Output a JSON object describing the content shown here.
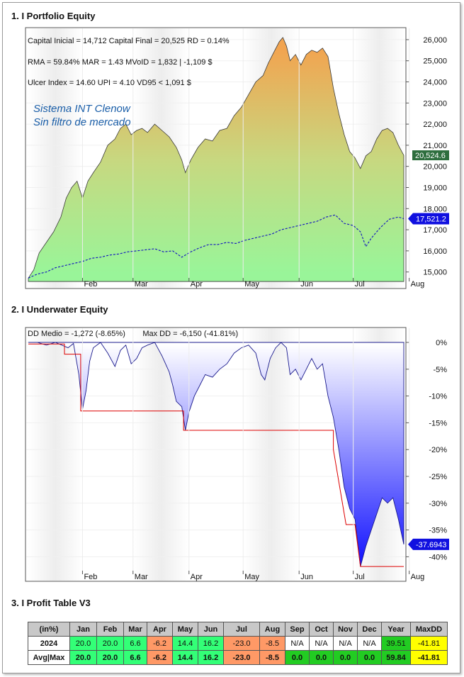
{
  "sections": {
    "equity_title": "1. I Portfolio Equity",
    "underwater_title": "2. I Underwater Equity",
    "profit_title": "3. I Profit Table V3"
  },
  "equity_stats": {
    "line1": "Capital Inicial = 14,712  Capital Final = 20,525   RD = 0.14%",
    "line2": "RMA = 59.84%   MAR = 1.43   MVoID = 1,832 | -1,109 $",
    "line3": "Ulcer Index = 14.60   UPI = 4.10   VD95 < 1,091 $"
  },
  "equity_annotation": {
    "line1": "Sistema INT Clenow",
    "line2": "Sin filtro de mercado"
  },
  "underwater_stats": {
    "text": "DD Medio = -1,272 (-8.65%)        Max DD = -6,150 (-41.81%)"
  },
  "chart_data": [
    {
      "type": "area",
      "name": "portfolio-equity",
      "y_ticks": [
        "26,000",
        "25,000",
        "24,000",
        "23,000",
        "22,000",
        "21,000",
        "20,000",
        "19,000",
        "18,000",
        "17,000",
        "16,000",
        "15,000"
      ],
      "x_ticks": [
        "Feb",
        "Mar",
        "Apr",
        "May",
        "Jun",
        "Jul",
        "Aug"
      ],
      "ylim": [
        14250,
        26400
      ],
      "last_value_label": "20,524.6",
      "benchmark_last_label": "17,521.2",
      "series_equity": [
        {
          "t": 0,
          "v": 14712
        },
        {
          "t": 3,
          "v": 15100
        },
        {
          "t": 6,
          "v": 15900
        },
        {
          "t": 10,
          "v": 16400
        },
        {
          "t": 14,
          "v": 16900
        },
        {
          "t": 18,
          "v": 17600
        },
        {
          "t": 21,
          "v": 18500
        },
        {
          "t": 24,
          "v": 19000
        },
        {
          "t": 27,
          "v": 19300
        },
        {
          "t": 30,
          "v": 18500
        },
        {
          "t": 33,
          "v": 19300
        },
        {
          "t": 36,
          "v": 19700
        },
        {
          "t": 40,
          "v": 20200
        },
        {
          "t": 44,
          "v": 21000
        },
        {
          "t": 48,
          "v": 21300
        },
        {
          "t": 51,
          "v": 21800
        },
        {
          "t": 54,
          "v": 22000
        },
        {
          "t": 57,
          "v": 21500
        },
        {
          "t": 60,
          "v": 21700
        },
        {
          "t": 63,
          "v": 21800
        },
        {
          "t": 66,
          "v": 21600
        },
        {
          "t": 70,
          "v": 22000
        },
        {
          "t": 74,
          "v": 21700
        },
        {
          "t": 78,
          "v": 21400
        },
        {
          "t": 82,
          "v": 20900
        },
        {
          "t": 85,
          "v": 20300
        },
        {
          "t": 87,
          "v": 19700
        },
        {
          "t": 90,
          "v": 20300
        },
        {
          "t": 94,
          "v": 20900
        },
        {
          "t": 98,
          "v": 21300
        },
        {
          "t": 102,
          "v": 21200
        },
        {
          "t": 106,
          "v": 21700
        },
        {
          "t": 110,
          "v": 21800
        },
        {
          "t": 114,
          "v": 22400
        },
        {
          "t": 118,
          "v": 22800
        },
        {
          "t": 122,
          "v": 23400
        },
        {
          "t": 126,
          "v": 24000
        },
        {
          "t": 130,
          "v": 24300
        },
        {
          "t": 133,
          "v": 24900
        },
        {
          "t": 136,
          "v": 25400
        },
        {
          "t": 139,
          "v": 25900
        },
        {
          "t": 141,
          "v": 26100
        },
        {
          "t": 143,
          "v": 25700
        },
        {
          "t": 145,
          "v": 25000
        },
        {
          "t": 148,
          "v": 25300
        },
        {
          "t": 151,
          "v": 24800
        },
        {
          "t": 154,
          "v": 25300
        },
        {
          "t": 157,
          "v": 25500
        },
        {
          "t": 160,
          "v": 25400
        },
        {
          "t": 163,
          "v": 25600
        },
        {
          "t": 166,
          "v": 25200
        },
        {
          "t": 169,
          "v": 23700
        },
        {
          "t": 172,
          "v": 22500
        },
        {
          "t": 175,
          "v": 21500
        },
        {
          "t": 178,
          "v": 20700
        },
        {
          "t": 181,
          "v": 20400
        },
        {
          "t": 184,
          "v": 19900
        },
        {
          "t": 187,
          "v": 20500
        },
        {
          "t": 190,
          "v": 20700
        },
        {
          "t": 193,
          "v": 21300
        },
        {
          "t": 196,
          "v": 21700
        },
        {
          "t": 199,
          "v": 21800
        },
        {
          "t": 202,
          "v": 21600
        },
        {
          "t": 205,
          "v": 21000
        },
        {
          "t": 208,
          "v": 20524.6
        }
      ],
      "series_benchmark": [
        {
          "t": 0,
          "v": 14712
        },
        {
          "t": 5,
          "v": 14900
        },
        {
          "t": 10,
          "v": 15000
        },
        {
          "t": 15,
          "v": 15200
        },
        {
          "t": 20,
          "v": 15300
        },
        {
          "t": 25,
          "v": 15400
        },
        {
          "t": 30,
          "v": 15500
        },
        {
          "t": 35,
          "v": 15650
        },
        {
          "t": 40,
          "v": 15700
        },
        {
          "t": 45,
          "v": 15800
        },
        {
          "t": 50,
          "v": 15850
        },
        {
          "t": 55,
          "v": 15950
        },
        {
          "t": 60,
          "v": 16000
        },
        {
          "t": 65,
          "v": 16050
        },
        {
          "t": 70,
          "v": 16100
        },
        {
          "t": 75,
          "v": 15950
        },
        {
          "t": 80,
          "v": 16000
        },
        {
          "t": 85,
          "v": 15700
        },
        {
          "t": 90,
          "v": 15950
        },
        {
          "t": 95,
          "v": 16150
        },
        {
          "t": 100,
          "v": 16300
        },
        {
          "t": 105,
          "v": 16300
        },
        {
          "t": 110,
          "v": 16400
        },
        {
          "t": 115,
          "v": 16350
        },
        {
          "t": 120,
          "v": 16500
        },
        {
          "t": 125,
          "v": 16600
        },
        {
          "t": 130,
          "v": 16700
        },
        {
          "t": 135,
          "v": 16800
        },
        {
          "t": 140,
          "v": 17000
        },
        {
          "t": 145,
          "v": 17100
        },
        {
          "t": 150,
          "v": 17200
        },
        {
          "t": 155,
          "v": 17300
        },
        {
          "t": 160,
          "v": 17400
        },
        {
          "t": 165,
          "v": 17600
        },
        {
          "t": 170,
          "v": 17700
        },
        {
          "t": 175,
          "v": 17300
        },
        {
          "t": 180,
          "v": 17200
        },
        {
          "t": 184,
          "v": 16900
        },
        {
          "t": 187,
          "v": 16200
        },
        {
          "t": 190,
          "v": 16600
        },
        {
          "t": 195,
          "v": 17100
        },
        {
          "t": 200,
          "v": 17500
        },
        {
          "t": 205,
          "v": 17600
        },
        {
          "t": 208,
          "v": 17521.2
        }
      ]
    },
    {
      "type": "area",
      "name": "underwater-equity",
      "y_ticks": [
        "0%",
        "-5%",
        "-10%",
        "-15%",
        "-20%",
        "-25%",
        "-30%",
        "-35%",
        "-40%"
      ],
      "x_ticks": [
        "Feb",
        "Mar",
        "Apr",
        "May",
        "Jun",
        "Jul",
        "Aug"
      ],
      "ylim": [
        -43,
        1.5
      ],
      "last_value_label": "-37.6943",
      "series_drawdown": [
        {
          "t": 0,
          "v": 0
        },
        {
          "t": 5,
          "v": 0
        },
        {
          "t": 10,
          "v": -0.5
        },
        {
          "t": 15,
          "v": 0
        },
        {
          "t": 22,
          "v": -1.0
        },
        {
          "t": 25,
          "v": -0.2
        },
        {
          "t": 28,
          "v": -6
        },
        {
          "t": 30,
          "v": -12.5
        },
        {
          "t": 32,
          "v": -9
        },
        {
          "t": 34,
          "v": -3.5
        },
        {
          "t": 36,
          "v": -1
        },
        {
          "t": 40,
          "v": 0
        },
        {
          "t": 44,
          "v": -2
        },
        {
          "t": 48,
          "v": -4.5
        },
        {
          "t": 51,
          "v": -1.5
        },
        {
          "t": 54,
          "v": -0.5
        },
        {
          "t": 57,
          "v": -4
        },
        {
          "t": 60,
          "v": -3
        },
        {
          "t": 63,
          "v": -1
        },
        {
          "t": 66,
          "v": -0.5
        },
        {
          "t": 70,
          "v": 0
        },
        {
          "t": 74,
          "v": -2.5
        },
        {
          "t": 78,
          "v": -5.5
        },
        {
          "t": 80,
          "v": -8
        },
        {
          "t": 82,
          "v": -11
        },
        {
          "t": 85,
          "v": -12
        },
        {
          "t": 87,
          "v": -16.4
        },
        {
          "t": 89,
          "v": -13
        },
        {
          "t": 92,
          "v": -10
        },
        {
          "t": 95,
          "v": -8
        },
        {
          "t": 98,
          "v": -6
        },
        {
          "t": 102,
          "v": -6.5
        },
        {
          "t": 106,
          "v": -5
        },
        {
          "t": 110,
          "v": -4
        },
        {
          "t": 114,
          "v": -2
        },
        {
          "t": 118,
          "v": -1
        },
        {
          "t": 122,
          "v": -0.5
        },
        {
          "t": 126,
          "v": -2
        },
        {
          "t": 129,
          "v": -6
        },
        {
          "t": 131,
          "v": -7
        },
        {
          "t": 134,
          "v": -3
        },
        {
          "t": 137,
          "v": -1
        },
        {
          "t": 140,
          "v": 0
        },
        {
          "t": 143,
          "v": -1
        },
        {
          "t": 145,
          "v": -6
        },
        {
          "t": 148,
          "v": -5
        },
        {
          "t": 151,
          "v": -7
        },
        {
          "t": 154,
          "v": -5
        },
        {
          "t": 157,
          "v": -3
        },
        {
          "t": 160,
          "v": -5
        },
        {
          "t": 163,
          "v": -4
        },
        {
          "t": 166,
          "v": -10
        },
        {
          "t": 169,
          "v": -14
        },
        {
          "t": 172,
          "v": -20
        },
        {
          "t": 175,
          "v": -27
        },
        {
          "t": 178,
          "v": -31
        },
        {
          "t": 181,
          "v": -33
        },
        {
          "t": 184,
          "v": -41.81
        },
        {
          "t": 187,
          "v": -38
        },
        {
          "t": 190,
          "v": -35
        },
        {
          "t": 193,
          "v": -32
        },
        {
          "t": 196,
          "v": -29
        },
        {
          "t": 199,
          "v": -30
        },
        {
          "t": 202,
          "v": -29
        },
        {
          "t": 205,
          "v": -33
        },
        {
          "t": 208,
          "v": -37.69
        }
      ],
      "series_max_drawdown": [
        {
          "t": 0,
          "v": -0.3
        },
        {
          "t": 20,
          "v": -0.3
        },
        {
          "t": 20,
          "v": -2.2
        },
        {
          "t": 29,
          "v": -2.2
        },
        {
          "t": 29,
          "v": -12.8
        },
        {
          "t": 86,
          "v": -12.8
        },
        {
          "t": 86,
          "v": -16.4
        },
        {
          "t": 169,
          "v": -16.4
        },
        {
          "t": 169,
          "v": -20
        },
        {
          "t": 176,
          "v": -34
        },
        {
          "t": 181,
          "v": -34
        },
        {
          "t": 184,
          "v": -41.81
        },
        {
          "t": 208,
          "v": -41.81
        }
      ]
    },
    {
      "type": "table",
      "name": "profit-table",
      "columns": [
        "(in%)",
        "Jan",
        "Feb",
        "Mar",
        "Apr",
        "May",
        "Jun",
        "Jul",
        "Aug",
        "Sep",
        "Oct",
        "Nov",
        "Dec",
        "Year",
        "MaxDD"
      ],
      "rows": [
        {
          "label": "2024",
          "cells": [
            "20.0",
            "20.0",
            "6.6",
            "-6.2",
            "14.4",
            "16.2",
            "-23.0",
            "-8.5",
            "N/A",
            "N/A",
            "N/A",
            "N/A",
            "39.51",
            "-41.81"
          ]
        },
        {
          "label": "Avg|Max",
          "cells": [
            "20.0",
            "20.0",
            "6.6",
            "-6.2",
            "14.4",
            "16.2",
            "-23.0",
            "-8.5",
            "0.0",
            "0.0",
            "0.0",
            "0.0",
            "59.84",
            "-41.81"
          ]
        }
      ]
    }
  ],
  "colors": {
    "equity_top": "#f2a450",
    "equity_mid": "#c7d880",
    "equity_bottom": "#99f599",
    "benchmark": "#1010c0",
    "underwater_line": "#1a1a8c",
    "underwater_bottom": "#1010ff",
    "max_dd_line": "#dd0000",
    "equity_label_bg": "#2e6e3e",
    "benchmark_label_bg": "#1010e0",
    "annotation": "#1a5ea8"
  }
}
